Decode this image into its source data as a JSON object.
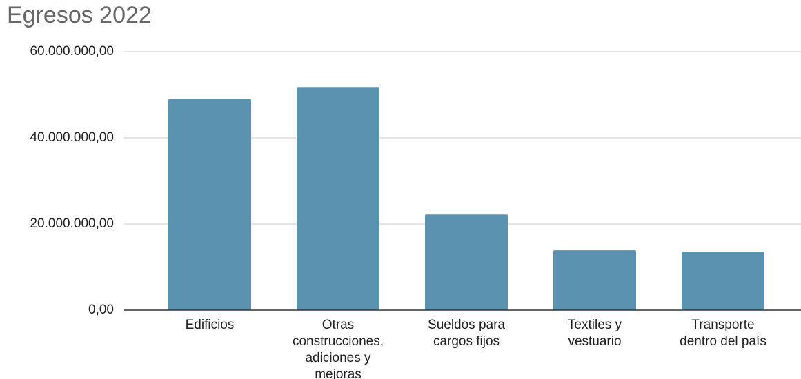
{
  "chart_data": {
    "type": "bar",
    "title": "Egresos 2022",
    "categories": [
      "Edificios",
      "Otras construcciones, adiciones y mejoras",
      "Sueldos para cargos fijos",
      "Textiles y vestuario",
      "Transporte dentro del país"
    ],
    "values": [
      49000000,
      51800000,
      22200000,
      13900000,
      13600000
    ],
    "color": "#5b92b0",
    "ylim": [
      0,
      60000000
    ],
    "yticks": [
      {
        "value": 0,
        "label": "0,00"
      },
      {
        "value": 20000000,
        "label": "20.000.000,00"
      },
      {
        "value": 40000000,
        "label": "40.000.000,00"
      },
      {
        "value": 60000000,
        "label": "60.000.000,00"
      }
    ],
    "grid": true
  }
}
